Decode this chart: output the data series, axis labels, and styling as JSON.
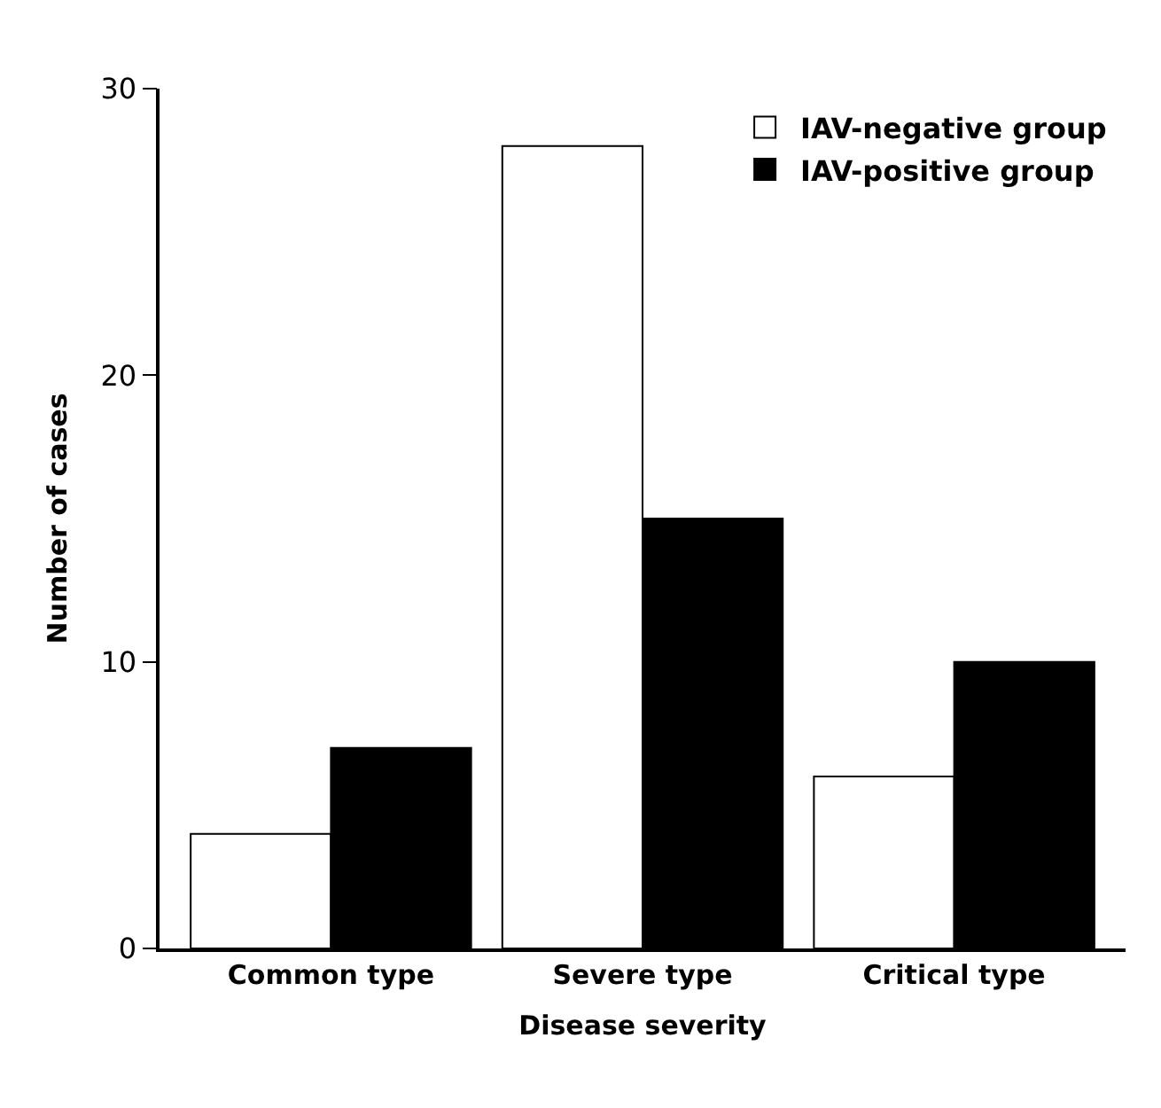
{
  "chart_data": {
    "type": "bar",
    "xlabel": "Disease severity",
    "ylabel": "Number of cases",
    "categories": [
      "Common type",
      "Severe type",
      "Critical type"
    ],
    "series": [
      {
        "name": "IAV-negative group",
        "color": "#ffffff",
        "values": [
          4,
          28,
          6
        ]
      },
      {
        "name": "IAV-positive group",
        "color": "#000000",
        "values": [
          7,
          15,
          10
        ]
      }
    ],
    "ylim": [
      0,
      30
    ],
    "yticks": [
      0,
      10,
      20,
      30
    ],
    "legend": "top right"
  }
}
